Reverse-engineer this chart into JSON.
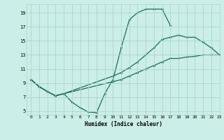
{
  "bg_color": "#cceee8",
  "grid_color": "#aad4cc",
  "line_color": "#1a6b5e",
  "xlabel": "Humidex (Indice chaleur)",
  "xlim": [
    -0.5,
    23
  ],
  "ylim": [
    4.5,
    20.2
  ],
  "xticks": [
    0,
    1,
    2,
    3,
    4,
    5,
    6,
    7,
    8,
    9,
    10,
    11,
    12,
    13,
    14,
    15,
    16,
    17,
    18,
    19,
    20,
    21,
    22,
    23
  ],
  "yticks": [
    5,
    7,
    9,
    11,
    13,
    15,
    17,
    19
  ],
  "line1": {
    "x": [
      0,
      1,
      2,
      3,
      4,
      5,
      6,
      7,
      8,
      9,
      10,
      11,
      12,
      13,
      14,
      15,
      16,
      17
    ],
    "y": [
      9.5,
      8.5,
      7.8,
      7.2,
      7.5,
      6.3,
      5.5,
      4.9,
      4.8,
      7.5,
      9.5,
      14.0,
      18.0,
      19.0,
      19.5,
      19.5,
      19.5,
      17.2
    ]
  },
  "line2": {
    "x": [
      0,
      1,
      2,
      3,
      4,
      10,
      11,
      12,
      13,
      14,
      15,
      16,
      17,
      18,
      19,
      20,
      21,
      22,
      23
    ],
    "y": [
      9.5,
      8.5,
      7.8,
      7.2,
      7.5,
      10.0,
      10.5,
      11.2,
      12.0,
      13.0,
      14.0,
      15.2,
      15.5,
      15.8,
      15.5,
      15.5,
      14.8,
      14.0,
      13.0
    ]
  },
  "line3": {
    "x": [
      0,
      1,
      2,
      3,
      4,
      10,
      11,
      12,
      13,
      14,
      15,
      16,
      17,
      18,
      19,
      20,
      21,
      22,
      23
    ],
    "y": [
      9.5,
      8.5,
      7.8,
      7.2,
      7.5,
      9.2,
      9.5,
      10.0,
      10.5,
      11.0,
      11.5,
      12.0,
      12.5,
      12.5,
      12.7,
      12.8,
      13.0,
      13.0,
      13.0
    ]
  }
}
